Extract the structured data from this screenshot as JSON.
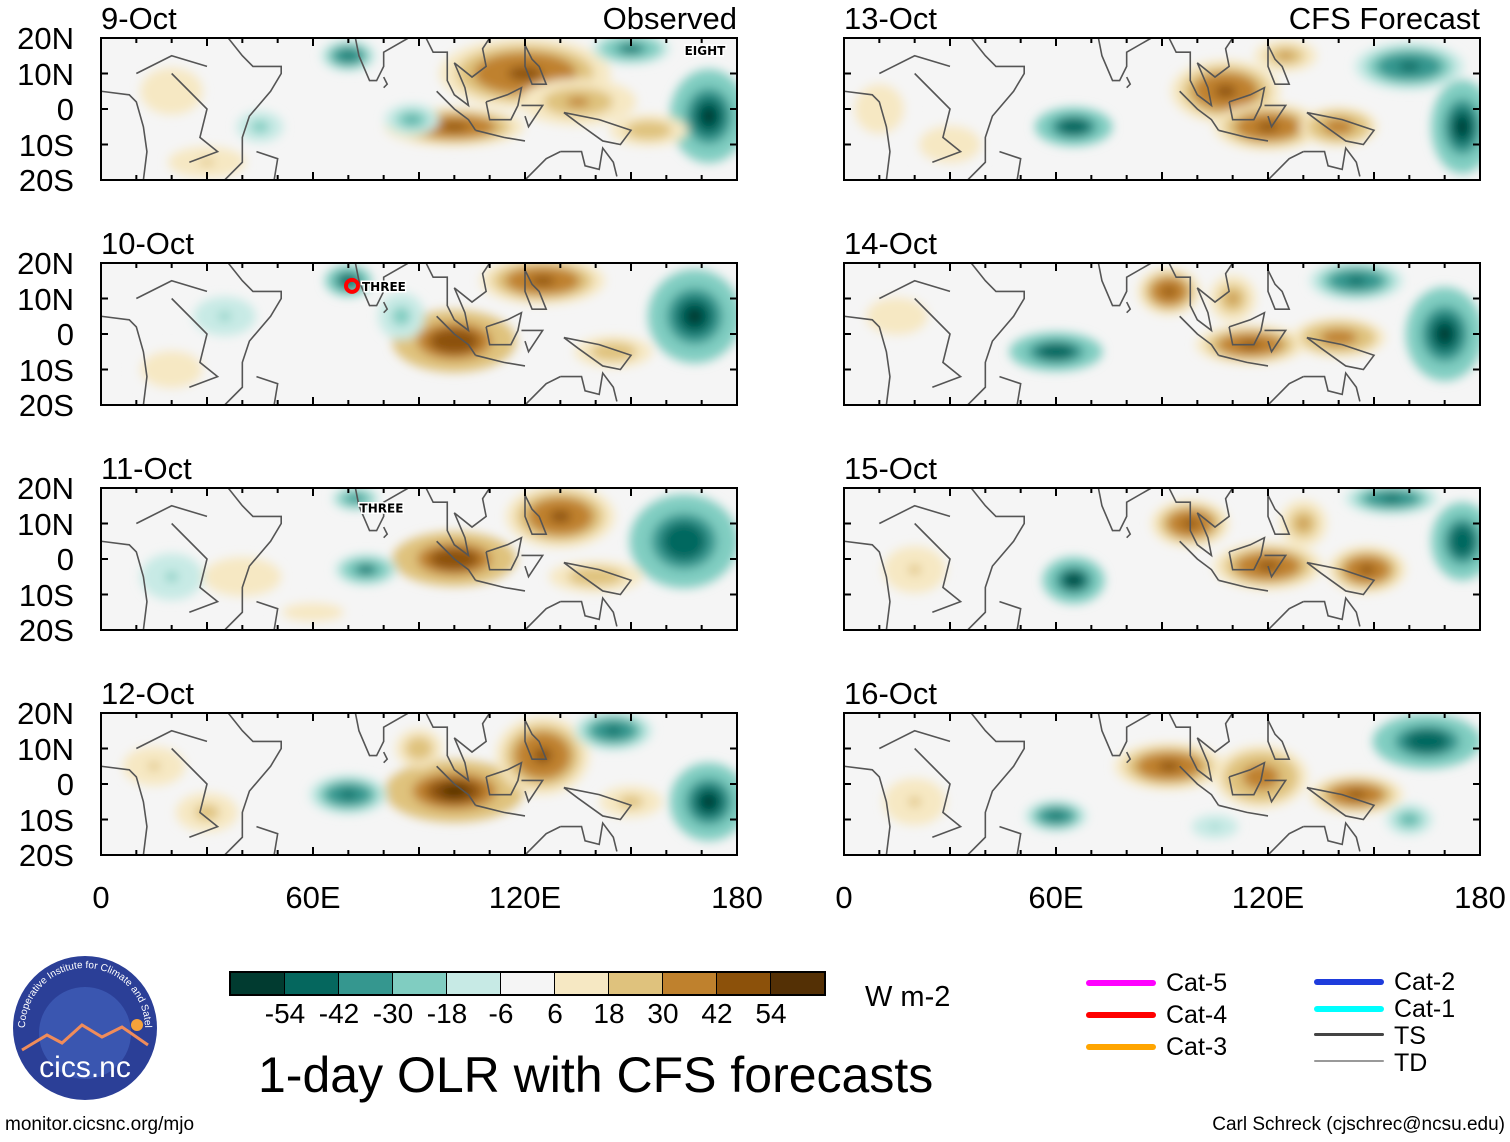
{
  "chart_data": {
    "type": "heatmap",
    "title": "1-day OLR with CFS forecasts",
    "units": "W m-2",
    "lon_range": [
      0,
      180
    ],
    "lat_range": [
      -20,
      20
    ],
    "x_ticks": [
      "0",
      "60E",
      "120E",
      "180"
    ],
    "y_ticks": [
      "20N",
      "10N",
      "0",
      "10S",
      "20S"
    ],
    "colorbar": {
      "levels": [
        "-54",
        "-42",
        "-30",
        "-18",
        "-6",
        "6",
        "18",
        "30",
        "42",
        "54"
      ],
      "colors": [
        "#013b30",
        "#05675e",
        "#35978f",
        "#80cdc1",
        "#c7eae5",
        "#f5f5f5",
        "#f6e8c3",
        "#dfc27d",
        "#bf812d",
        "#8c510a",
        "#543005"
      ]
    },
    "columns": [
      {
        "label": "Observed",
        "panels": [
          {
            "date": "9-Oct",
            "storms": [
              {
                "name": "EIGHT",
                "lon": 168,
                "lat": 16
              }
            ],
            "blobs": [
              [
                120,
                10,
                22,
                9,
                48
              ],
              [
                100,
                -5,
                18,
                5,
                45
              ],
              [
                135,
                2,
                15,
                6,
                35
              ],
              [
                172,
                -2,
                10,
                12,
                -58
              ],
              [
                70,
                15,
                7,
                4,
                -48
              ],
              [
                88,
                -3,
                7,
                4,
                -35
              ],
              [
                150,
                17,
                10,
                4,
                -42
              ],
              [
                30,
                -15,
                10,
                4,
                20
              ],
              [
                20,
                5,
                8,
                6,
                18
              ],
              [
                45,
                -5,
                6,
                4,
                -25
              ],
              [
                155,
                -6,
                10,
                4,
                30
              ]
            ]
          },
          {
            "date": "10-Oct",
            "storms": [
              {
                "name": "THREE",
                "lon": 75,
                "lat": 13,
                "cat": "Cat-4"
              }
            ],
            "blobs": [
              [
                100,
                -2,
                16,
                8,
                52
              ],
              [
                125,
                15,
                16,
                6,
                50
              ],
              [
                168,
                5,
                12,
                12,
                -58
              ],
              [
                70,
                15,
                6,
                4,
                -52
              ],
              [
                85,
                5,
                6,
                6,
                -25
              ],
              [
                145,
                -5,
                10,
                4,
                28
              ],
              [
                20,
                -10,
                10,
                6,
                15
              ],
              [
                35,
                5,
                8,
                5,
                -20
              ]
            ]
          },
          {
            "date": "11-Oct",
            "storms": [
              {
                "name": "THREE",
                "lon": 76,
                "lat": 14
              }
            ],
            "blobs": [
              [
                100,
                0,
                16,
                7,
                52
              ],
              [
                130,
                12,
                14,
                8,
                45
              ],
              [
                165,
                5,
                14,
                12,
                -52
              ],
              [
                72,
                17,
                6,
                3,
                -38
              ],
              [
                75,
                -3,
                8,
                4,
                -42
              ],
              [
                40,
                -5,
                10,
                5,
                18
              ],
              [
                140,
                -5,
                12,
                4,
                30
              ],
              [
                20,
                -5,
                8,
                6,
                -20
              ],
              [
                60,
                -15,
                10,
                3,
                15
              ]
            ]
          },
          {
            "date": "12-Oct",
            "storms": [],
            "blobs": [
              [
                100,
                -2,
                18,
                8,
                56
              ],
              [
                125,
                8,
                12,
                10,
                50
              ],
              [
                70,
                -3,
                10,
                5,
                -50
              ],
              [
                172,
                -5,
                10,
                10,
                -58
              ],
              [
                145,
                15,
                10,
                5,
                -45
              ],
              [
                90,
                10,
                6,
                5,
                30
              ],
              [
                15,
                5,
                8,
                5,
                20
              ],
              [
                30,
                -8,
                8,
                5,
                25
              ],
              [
                150,
                -5,
                8,
                4,
                25
              ]
            ]
          }
        ]
      },
      {
        "label": "CFS Forecast",
        "panels": [
          {
            "date": "13-Oct",
            "storms": [],
            "blobs": [
              [
                108,
                5,
                14,
                8,
                45
              ],
              [
                120,
                -5,
                14,
                6,
                45
              ],
              [
                140,
                -5,
                10,
                5,
                40
              ],
              [
                65,
                -5,
                10,
                5,
                -52
              ],
              [
                160,
                12,
                14,
                6,
                -45
              ],
              [
                175,
                -5,
                8,
                12,
                -58
              ],
              [
                125,
                15,
                8,
                4,
                35
              ],
              [
                10,
                0,
                8,
                8,
                15
              ],
              [
                30,
                -10,
                10,
                6,
                15
              ]
            ]
          },
          {
            "date": "14-Oct",
            "storms": [],
            "blobs": [
              [
                92,
                12,
                8,
                6,
                48
              ],
              [
                115,
                -3,
                14,
                5,
                45
              ],
              [
                140,
                -1,
                12,
                5,
                42
              ],
              [
                60,
                -5,
                12,
                5,
                -52
              ],
              [
                145,
                15,
                12,
                5,
                -50
              ],
              [
                170,
                0,
                10,
                12,
                -56
              ],
              [
                110,
                10,
                6,
                6,
                35
              ],
              [
                15,
                5,
                10,
                6,
                15
              ]
            ]
          },
          {
            "date": "15-Oct",
            "storms": [],
            "blobs": [
              [
                98,
                10,
                10,
                6,
                45
              ],
              [
                120,
                -2,
                14,
                6,
                45
              ],
              [
                148,
                -3,
                10,
                6,
                48
              ],
              [
                65,
                -6,
                8,
                6,
                -58
              ],
              [
                155,
                17,
                12,
                4,
                -45
              ],
              [
                175,
                5,
                8,
                10,
                -52
              ],
              [
                130,
                10,
                6,
                6,
                35
              ],
              [
                20,
                -3,
                8,
                6,
                20
              ]
            ]
          },
          {
            "date": "16-Oct",
            "storms": [],
            "blobs": [
              [
                92,
                5,
                14,
                6,
                45
              ],
              [
                118,
                2,
                12,
                8,
                42
              ],
              [
                145,
                -3,
                12,
                5,
                46
              ],
              [
                60,
                -9,
                8,
                4,
                -48
              ],
              [
                165,
                12,
                14,
                7,
                -52
              ],
              [
                160,
                -10,
                6,
                4,
                -35
              ],
              [
                20,
                -5,
                8,
                6,
                20
              ],
              [
                105,
                -12,
                6,
                3,
                -20
              ]
            ]
          }
        ]
      }
    ]
  },
  "footer": {
    "left_url": "monitor.cicsnc.org/mjo",
    "credit": "Carl Schreck (cjschrec@ncsu.edu)",
    "logo_text": "cics.nc",
    "logo_ring_text": "Cooperative Institute for Climate and Satellites"
  },
  "legend": {
    "items": [
      {
        "label": "Cat-5",
        "color": "#ff00ff"
      },
      {
        "label": "Cat-4",
        "color": "#ff0000"
      },
      {
        "label": "Cat-3",
        "color": "#ffa500"
      },
      {
        "label": "Cat-2",
        "color": "#1e3cdc"
      },
      {
        "label": "Cat-1",
        "color": "#00ffff"
      },
      {
        "label": "TS",
        "color": "#444444"
      },
      {
        "label": "TD",
        "color": "#999999"
      }
    ]
  }
}
